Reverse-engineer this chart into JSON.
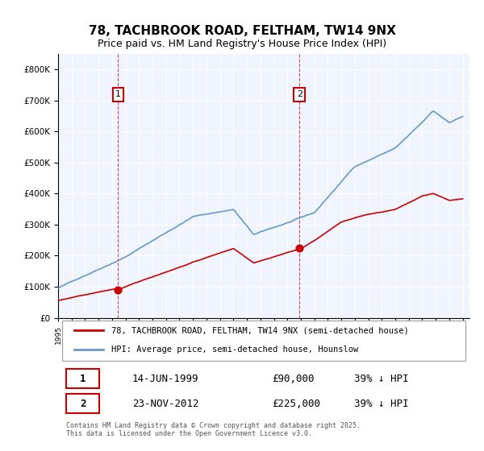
{
  "title": "78, TACHBROOK ROAD, FELTHAM, TW14 9NX",
  "subtitle": "Price paid vs. HM Land Registry's House Price Index (HPI)",
  "legend_line1": "78, TACHBROOK ROAD, FELTHAM, TW14 9NX (semi-detached house)",
  "legend_line2": "HPI: Average price, semi-detached house, Hounslow",
  "sale1_label": "1",
  "sale1_date": "14-JUN-1999",
  "sale1_price": "£90,000",
  "sale1_hpi": "39% ↓ HPI",
  "sale1_year": 1999.45,
  "sale1_value": 90000,
  "sale2_label": "2",
  "sale2_date": "23-NOV-2012",
  "sale2_price": "£225,000",
  "sale2_hpi": "39% ↓ HPI",
  "sale2_year": 2012.9,
  "sale2_value": 225000,
  "red_color": "#cc0000",
  "blue_color": "#6699cc",
  "background_color": "#f0f4ff",
  "footer_text": "Contains HM Land Registry data © Crown copyright and database right 2025.\nThis data is licensed under the Open Government Licence v3.0.",
  "ylim_max": 850000,
  "yticks": [
    0,
    100000,
    200000,
    300000,
    400000,
    500000,
    600000,
    700000,
    800000
  ],
  "ylabel_format": "£{0}K"
}
